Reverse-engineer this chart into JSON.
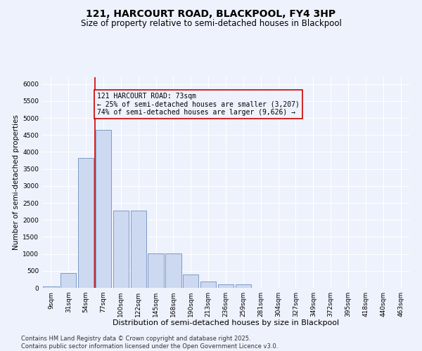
{
  "title": "121, HARCOURT ROAD, BLACKPOOL, FY4 3HP",
  "subtitle": "Size of property relative to semi-detached houses in Blackpool",
  "xlabel": "Distribution of semi-detached houses by size in Blackpool",
  "ylabel": "Number of semi-detached properties",
  "categories": [
    "9sqm",
    "31sqm",
    "54sqm",
    "77sqm",
    "100sqm",
    "122sqm",
    "145sqm",
    "168sqm",
    "190sqm",
    "213sqm",
    "236sqm",
    "259sqm",
    "281sqm",
    "304sqm",
    "327sqm",
    "349sqm",
    "372sqm",
    "395sqm",
    "418sqm",
    "440sqm",
    "463sqm"
  ],
  "values": [
    50,
    430,
    3820,
    4650,
    2280,
    2280,
    1010,
    1010,
    390,
    185,
    100,
    95,
    0,
    0,
    0,
    0,
    0,
    0,
    0,
    0,
    0
  ],
  "bar_color": "#ccd9f0",
  "bar_edge_color": "#7090c0",
  "vline_pos": 2.5,
  "vline_color": "#cc0000",
  "annotation_text": "121 HARCOURT ROAD: 73sqm\n← 25% of semi-detached houses are smaller (3,207)\n74% of semi-detached houses are larger (9,626) →",
  "annotation_box_color": "#cc0000",
  "ylim": [
    0,
    6200
  ],
  "yticks": [
    0,
    500,
    1000,
    1500,
    2000,
    2500,
    3000,
    3500,
    4000,
    4500,
    5000,
    5500,
    6000
  ],
  "background_color": "#eef2fc",
  "grid_color": "#ffffff",
  "footnote": "Contains HM Land Registry data © Crown copyright and database right 2025.\nContains public sector information licensed under the Open Government Licence v3.0.",
  "title_fontsize": 10,
  "subtitle_fontsize": 8.5,
  "xlabel_fontsize": 8,
  "ylabel_fontsize": 7.5,
  "tick_fontsize": 6.5,
  "annotation_fontsize": 7,
  "footnote_fontsize": 6
}
